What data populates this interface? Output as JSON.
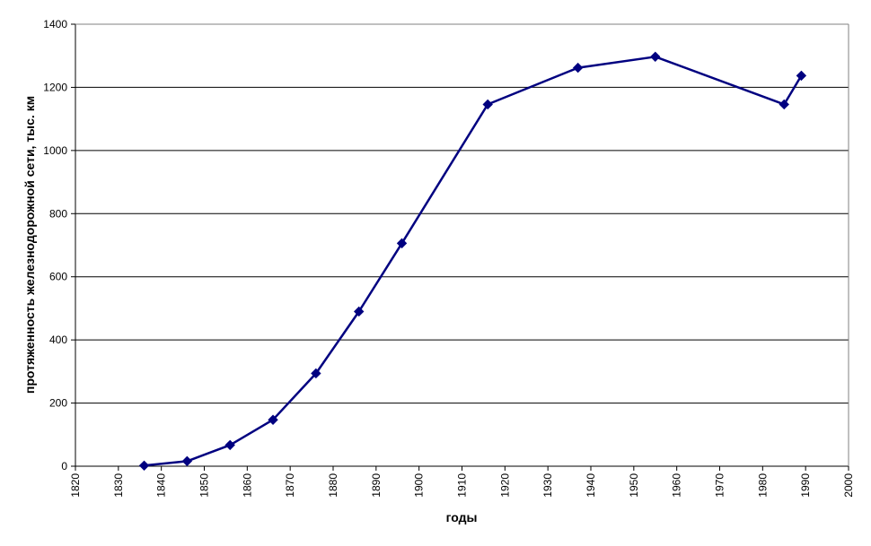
{
  "chart_data": {
    "type": "line",
    "title": "",
    "xlabel": "годы",
    "ylabel": "протяженность железнодорожной сети, тыс. км",
    "xlim": [
      1820,
      2000
    ],
    "ylim": [
      0,
      1400
    ],
    "xticks": [
      1820,
      1830,
      1840,
      1850,
      1860,
      1870,
      1880,
      1890,
      1900,
      1910,
      1920,
      1930,
      1940,
      1950,
      1960,
      1970,
      1980,
      1990,
      2000
    ],
    "yticks": [
      0,
      200,
      400,
      600,
      800,
      1000,
      1200,
      1400
    ],
    "grid": "horizontal",
    "legend": "none",
    "series": [
      {
        "color": "#000080",
        "marker": "diamond",
        "x": [
          1836,
          1846,
          1856,
          1866,
          1876,
          1886,
          1896,
          1916,
          1937,
          1955,
          1985,
          1989
        ],
        "y": [
          2,
          16,
          67,
          147,
          294,
          490,
          706,
          1146,
          1262,
          1297,
          1146,
          1237
        ]
      }
    ]
  }
}
